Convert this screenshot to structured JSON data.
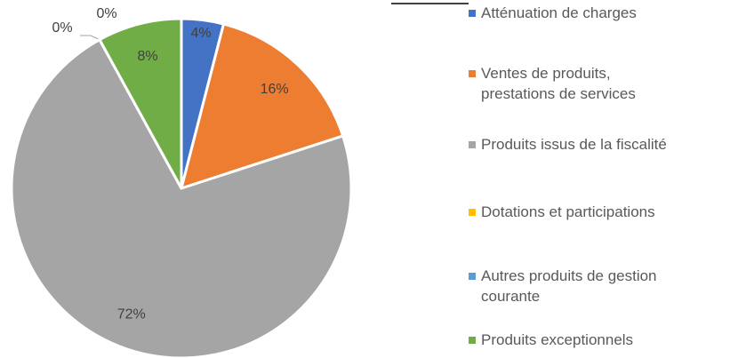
{
  "chart_data": {
    "type": "pie",
    "categories": [
      "Atténuation de charges",
      "Ventes de produits, prestations de services",
      "Produits issus de la fiscalité",
      "Dotations et participations",
      "Autres produits de gestion courante",
      "Produits exceptionnels"
    ],
    "values": [
      4,
      16,
      72,
      0,
      0,
      8
    ],
    "value_labels": [
      "4%",
      "16%",
      "72%",
      "0%",
      "0%",
      "8%"
    ],
    "colors": [
      "#4472c4",
      "#ed7d31",
      "#a5a5a5",
      "#ffc000",
      "#5b9bd5",
      "#70ad47"
    ],
    "legend": "right"
  }
}
